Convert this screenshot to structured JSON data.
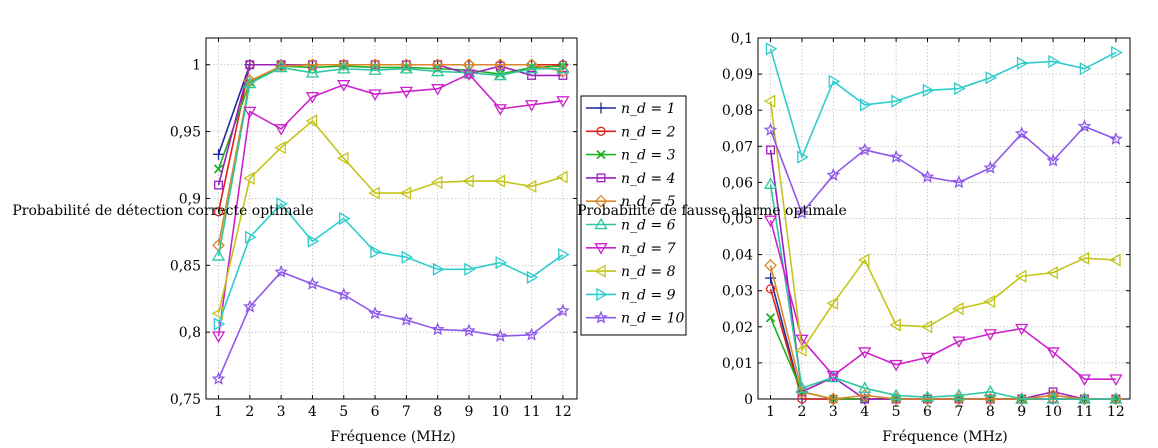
{
  "chart_data": [
    {
      "type": "line",
      "title": "",
      "xlabel": "Fréquence (MHz)",
      "ylabel": "Probabilité de détection correcte optimale",
      "x": [
        1,
        2,
        3,
        4,
        5,
        6,
        7,
        8,
        9,
        10,
        11,
        12
      ],
      "xlim": [
        0.6,
        12.45
      ],
      "ylim": [
        0.75,
        1.02
      ],
      "yticks": [
        0.75,
        0.8,
        0.85,
        0.9,
        0.95,
        1
      ],
      "ytick_labels": [
        "0,75",
        "0,8",
        "0,85",
        "0,9",
        "0,95",
        "1"
      ],
      "xtick_labels": [
        "1",
        "2",
        "3",
        "4",
        "5",
        "6",
        "7",
        "8",
        "9",
        "10",
        "11",
        "12"
      ],
      "grid": true,
      "legend": {
        "placement": "outside-right",
        "labels": [
          "n_d = 1",
          "n_d = 2",
          "n_d = 3",
          "n_d = 4",
          "n_d = 5",
          "n_d = 6",
          "n_d = 7",
          "n_d = 8",
          "n_d = 9",
          "n_d = 10"
        ]
      },
      "series": [
        {
          "name": "n_d = 1",
          "values": [
            0.933,
            1.0,
            1.0,
            1.0,
            1.0,
            1.0,
            1.0,
            1.0,
            1.0,
            1.0,
            1.0,
            1.0
          ]
        },
        {
          "name": "n_d = 2",
          "values": [
            0.89,
            1.0,
            1.0,
            1.0,
            1.0,
            1.0,
            1.0,
            1.0,
            1.0,
            1.0,
            1.0,
            1.0
          ]
        },
        {
          "name": "n_d = 3",
          "values": [
            0.922,
            0.987,
            0.999,
            0.998,
            0.999,
            0.998,
            0.998,
            0.997,
            0.996,
            0.993,
            0.998,
            0.999
          ]
        },
        {
          "name": "n_d = 4",
          "values": [
            0.91,
            1.0,
            1.0,
            1.0,
            1.0,
            1.0,
            1.0,
            1.0,
            0.993,
            0.999,
            0.992,
            0.992
          ]
        },
        {
          "name": "n_d = 5",
          "values": [
            0.865,
            0.988,
            0.999,
            1.0,
            1.0,
            1.0,
            1.0,
            1.0,
            1.0,
            1.0,
            1.0,
            0.995
          ]
        },
        {
          "name": "n_d = 6",
          "values": [
            0.857,
            0.986,
            0.998,
            0.994,
            0.997,
            0.996,
            0.997,
            0.995,
            0.994,
            0.992,
            0.997,
            0.997
          ]
        },
        {
          "name": "n_d = 7",
          "values": [
            0.797,
            0.965,
            0.952,
            0.976,
            0.985,
            0.978,
            0.98,
            0.982,
            0.993,
            0.967,
            0.97,
            0.973
          ]
        },
        {
          "name": "n_d = 8",
          "values": [
            0.814,
            0.915,
            0.938,
            0.958,
            0.93,
            0.904,
            0.904,
            0.912,
            0.913,
            0.913,
            0.909,
            0.916
          ]
        },
        {
          "name": "n_d = 9",
          "values": [
            0.806,
            0.871,
            0.896,
            0.868,
            0.885,
            0.86,
            0.856,
            0.847,
            0.847,
            0.852,
            0.841,
            0.858
          ]
        },
        {
          "name": "n_d = 10",
          "values": [
            0.765,
            0.819,
            0.845,
            0.836,
            0.828,
            0.814,
            0.809,
            0.802,
            0.801,
            0.797,
            0.798,
            0.816
          ]
        }
      ]
    },
    {
      "type": "line",
      "title": "",
      "xlabel": "Fréquence (MHz)",
      "ylabel": "Probabilité de fausse alarme optimale",
      "x": [
        1,
        2,
        3,
        4,
        5,
        6,
        7,
        8,
        9,
        10,
        11,
        12
      ],
      "xlim": [
        0.6,
        12.45
      ],
      "ylim": [
        0,
        0.1
      ],
      "yticks": [
        0,
        0.01,
        0.02,
        0.03,
        0.04,
        0.05,
        0.06,
        0.07,
        0.08,
        0.09,
        0.1
      ],
      "ytick_labels": [
        "0",
        "0,01",
        "0,02",
        "0,03",
        "0,04",
        "0,05",
        "0,06",
        "0,07",
        "0,08",
        "0,09",
        "0,1"
      ],
      "xtick_labels": [
        "1",
        "2",
        "3",
        "4",
        "5",
        "6",
        "7",
        "8",
        "9",
        "10",
        "11",
        "12"
      ],
      "grid": true,
      "series": [
        {
          "name": "n_d = 1",
          "values": [
            0.0335,
            0.0,
            0.0,
            0.0,
            0.0,
            0.0,
            0.0,
            0.0,
            0.0,
            0.0,
            0.0,
            0.0
          ]
        },
        {
          "name": "n_d = 2",
          "values": [
            0.0305,
            0.0,
            0.0,
            0.0,
            0.0,
            0.0,
            0.0,
            0.0,
            0.0,
            0.0,
            0.0,
            0.0
          ]
        },
        {
          "name": "n_d = 3",
          "values": [
            0.0225,
            0.002,
            0.0,
            0.0,
            0.0,
            0.0,
            0.0,
            0.0,
            0.0,
            0.001,
            0.0,
            0.0
          ]
        },
        {
          "name": "n_d = 4",
          "values": [
            0.069,
            0.002,
            0.006,
            0.0,
            0.0,
            0.0,
            0.0,
            0.0,
            0.0,
            0.002,
            0.0,
            0.0
          ]
        },
        {
          "name": "n_d = 5",
          "values": [
            0.037,
            0.002,
            0.0,
            0.001,
            0.0,
            0.0,
            0.0,
            0.0,
            0.0,
            0.001,
            0.0,
            0.0
          ]
        },
        {
          "name": "n_d = 6",
          "values": [
            0.0595,
            0.003,
            0.006,
            0.003,
            0.001,
            0.0005,
            0.001,
            0.002,
            0.0,
            0.0,
            0.0,
            0.0
          ]
        },
        {
          "name": "n_d = 7",
          "values": [
            0.0495,
            0.0165,
            0.0065,
            0.013,
            0.0095,
            0.0115,
            0.016,
            0.018,
            0.0195,
            0.013,
            0.0055,
            0.0055
          ]
        },
        {
          "name": "n_d = 8",
          "values": [
            0.0825,
            0.0135,
            0.0265,
            0.0385,
            0.0205,
            0.02,
            0.025,
            0.027,
            0.034,
            0.035,
            0.039,
            0.0385
          ]
        },
        {
          "name": "n_d = 9",
          "values": [
            0.097,
            0.067,
            0.088,
            0.0815,
            0.0825,
            0.0855,
            0.086,
            0.089,
            0.093,
            0.0935,
            0.0915,
            0.096
          ]
        },
        {
          "name": "n_d = 10",
          "values": [
            0.0745,
            0.0515,
            0.062,
            0.069,
            0.067,
            0.0615,
            0.06,
            0.064,
            0.0735,
            0.066,
            0.0755,
            0.072
          ]
        }
      ]
    }
  ],
  "colors": {
    "n_d = 1": "#1f2a9c",
    "n_d = 2": "#d9261c",
    "n_d = 3": "#22b022",
    "n_d = 4": "#9b1ec0",
    "n_d = 5": "#d9872a",
    "n_d = 6": "#2ec6a0",
    "n_d = 7": "#cc22cc",
    "n_d = 8": "#c4c41a",
    "n_d = 9": "#2ecccc",
    "n_d = 10": "#8e58ea",
    "grid": "#b8b8b8",
    "axes": "#000000"
  },
  "markers": [
    "plus",
    "circle",
    "x",
    "square",
    "diamond",
    "triangle-up",
    "triangle-down",
    "triangle-left",
    "triangle-right",
    "star"
  ]
}
